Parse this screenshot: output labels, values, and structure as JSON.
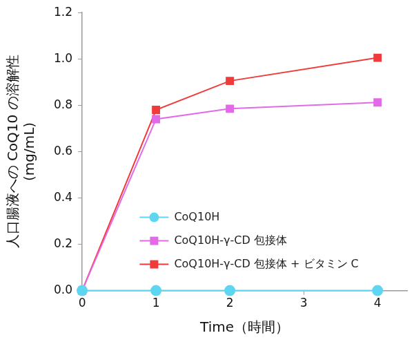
{
  "chart_data": {
    "type": "line",
    "x_label": "Time（時間）",
    "y_label": [
      "人口腸液への CoQ10 の溶解性",
      "(mg/mL)"
    ],
    "x": [
      0,
      1,
      2,
      4
    ],
    "series": [
      {
        "name": "CoQ10H",
        "color": "#5ed6f2",
        "marker": "circle",
        "line_style": "solid",
        "values": [
          0,
          0,
          0,
          0
        ]
      },
      {
        "name": "CoQ10H-γ-CD 包接体",
        "color": "#e26ae8",
        "marker": "square",
        "line_style": "solid",
        "values": [
          0,
          0.74,
          0.785,
          0.812
        ]
      },
      {
        "name": "CoQ10H-γ-CD 包接体 + ビタミン C",
        "color": "#f03b3b",
        "marker": "square",
        "line_style": "solid",
        "values": [
          0,
          0.78,
          0.905,
          1.005
        ]
      }
    ],
    "xlim": [
      0,
      4.4
    ],
    "xticks": [
      0,
      1,
      2,
      3,
      4
    ],
    "ylim": [
      0,
      1.2
    ],
    "yticks": [
      {
        "value": 0,
        "label": "0.0"
      },
      0.2,
      0.4,
      0.6,
      0.8,
      {
        "value": 1,
        "label": "1.0"
      },
      1.2
    ],
    "grid": false,
    "legend": "lower left"
  }
}
